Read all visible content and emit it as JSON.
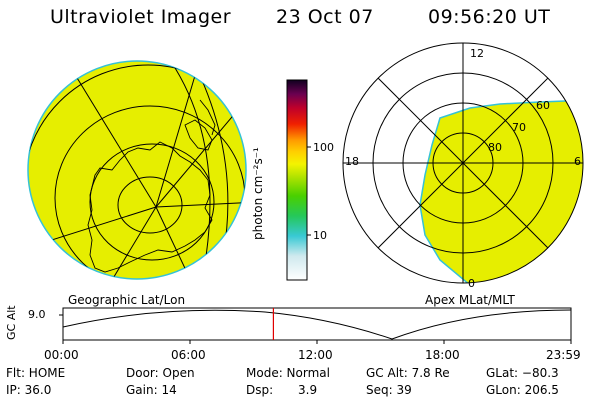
{
  "header": {
    "title": "Ultraviolet Imager",
    "date": "23 Oct 07",
    "time": "09:56:20 UT"
  },
  "colorbar": {
    "unit_label": "photon cm⁻²s⁻¹",
    "ticks": [
      "100",
      "10"
    ]
  },
  "geo_panel": {
    "caption": "Geographic Lat/Lon"
  },
  "apex_panel": {
    "caption": "Apex MLat/MLT",
    "mlt_labels": {
      "top": "12",
      "left": "18",
      "right": "6",
      "bottom": "0"
    },
    "lat_labels": [
      "60",
      "70",
      "80"
    ]
  },
  "altitude_plot": {
    "ylabel": "GC Alt",
    "ytick": "9.0",
    "xticks": [
      "00:00",
      "06:00",
      "12:00",
      "18:00",
      "23:59"
    ],
    "marker_time_hours": 9.94
  },
  "footer": {
    "flt": "Flt: HOME",
    "ip": "IP: 36.0",
    "door": "Door: Open",
    "gain": "Gain: 14",
    "mode": "Mode: Normal",
    "dsp_label": "Dsp:",
    "dsp_value": "3.9",
    "gc_alt": "GC Alt: 7.8 Re",
    "seq": "Seq: 39",
    "glat": "GLat: −80.3",
    "glon": "GLon: 206.5"
  },
  "colors": {
    "fill": "#e6ee00",
    "edge": "#35c2d6",
    "marker": "#e00000"
  }
}
